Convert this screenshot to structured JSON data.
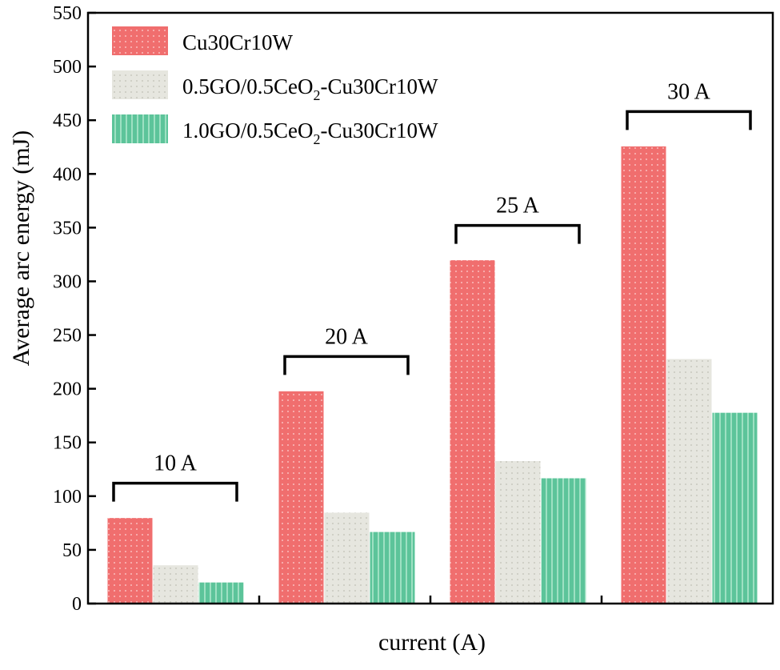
{
  "chart_data": {
    "type": "bar",
    "title": "",
    "xlabel": "current (A)",
    "ylabel": "Average arc energy (mJ)",
    "ylim": [
      0,
      550
    ],
    "y_ticks": [
      0,
      50,
      100,
      150,
      200,
      250,
      300,
      350,
      400,
      450,
      500,
      550
    ],
    "grid": false,
    "legend_position": "top-left",
    "categories": [
      "10 A",
      "20 A",
      "25 A",
      "30 A"
    ],
    "group_labels": [
      "10 A",
      "20 A",
      "25 A",
      "30 A"
    ],
    "series": [
      {
        "name": "Cu30Cr10W",
        "label_parts": [
          {
            "text": "Cu30Cr10W",
            "sub": false
          }
        ],
        "color": "#f06e6e",
        "pattern_dot": "#f7aaaa",
        "values": [
          80,
          198,
          320,
          426
        ]
      },
      {
        "name": "0.5GO/0.5CeO2-Cu30Cr10W",
        "label_parts": [
          {
            "text": "0.5GO/0.5CeO",
            "sub": false
          },
          {
            "text": "2",
            "sub": true
          },
          {
            "text": "-Cu30Cr10W",
            "sub": false
          }
        ],
        "color": "#e6e6df",
        "pattern_dot": "#cfcfc6",
        "values": [
          36,
          85,
          133,
          228
        ]
      },
      {
        "name": "1.0GO/0.5CeO2-Cu30Cr10W",
        "label_parts": [
          {
            "text": "1.0GO/0.5CeO",
            "sub": false
          },
          {
            "text": "2",
            "sub": true
          },
          {
            "text": "-Cu30Cr10W",
            "sub": false
          }
        ],
        "color": "#5cc49a",
        "pattern_dot": "#9ee0c2",
        "values": [
          20,
          67,
          117,
          178
        ]
      }
    ]
  }
}
